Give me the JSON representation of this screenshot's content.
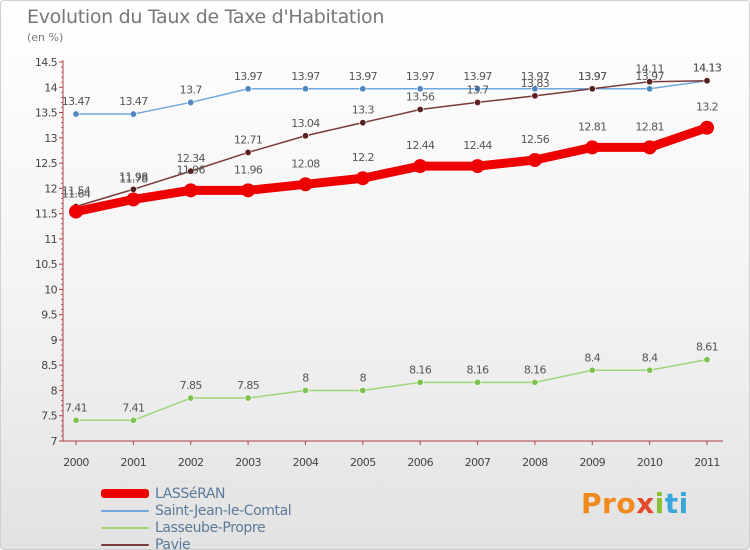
{
  "title": "Evolution du Taux de Taxe d'Habitation",
  "unit": "(en %)",
  "brand": {
    "p1": "Pro",
    "p2": "x",
    "p3": "i",
    "p4": "ti"
  },
  "chart_data": {
    "type": "line",
    "title": "Evolution du Taux de Taxe d'Habitation",
    "ylabel": "(en %)",
    "xlabel": "",
    "ylim": [
      7,
      14.5
    ],
    "x": [
      "2000",
      "2001",
      "2002",
      "2003",
      "2004",
      "2005",
      "2006",
      "2007",
      "2008",
      "2009",
      "2010",
      "2011"
    ],
    "yticks": [
      "7",
      "7.5",
      "8",
      "8.5",
      "9",
      "9.5",
      "10",
      "10.5",
      "11",
      "11.5",
      "12",
      "12.5",
      "13",
      "13.5",
      "14",
      "14.5"
    ],
    "grid": false,
    "legend_position": "bottom-left",
    "series": [
      {
        "name": "LASSéRAN",
        "color": "#ee0000",
        "values": [
          11.54,
          11.78,
          11.96,
          11.96,
          12.08,
          12.2,
          12.44,
          12.44,
          12.56,
          12.81,
          12.81,
          13.2
        ],
        "labels": [
          "11.54",
          "11.78",
          "11.96",
          "11.96",
          "12.08",
          "12.2",
          "12.44",
          "12.44",
          "12.56",
          "12.81",
          "12.81",
          "13.2"
        ]
      },
      {
        "name": "Saint-Jean-le-Comtal",
        "color": "#6fa8dc",
        "values": [
          13.47,
          13.47,
          13.7,
          13.97,
          13.97,
          13.97,
          13.97,
          13.97,
          13.97,
          13.97,
          13.97,
          14.13
        ],
        "labels": [
          "13.47",
          "13.47",
          "13.7",
          "13.97",
          "13.97",
          "13.97",
          "13.97",
          "13.97",
          "13.97",
          "13.97",
          "13.97",
          "14.13"
        ]
      },
      {
        "name": "Lasseube-Propre",
        "color": "#9fd67a",
        "values": [
          7.41,
          7.41,
          7.85,
          7.85,
          8,
          8,
          8.16,
          8.16,
          8.16,
          8.4,
          8.4,
          8.61
        ],
        "labels": [
          "7.41",
          "7.41",
          "7.85",
          "7.85",
          "8",
          "8",
          "8.16",
          "8.16",
          "8.16",
          "8.4",
          "8.4",
          "8.61"
        ]
      },
      {
        "name": "Pavie",
        "color": "#7a3b3b",
        "values": [
          11.64,
          11.98,
          12.34,
          12.71,
          13.04,
          13.3,
          13.56,
          13.7,
          13.83,
          13.97,
          14.11,
          14.13
        ],
        "labels": [
          "11.64",
          "11.98",
          "12.34",
          "12.71",
          "13.04",
          "13.3",
          "13.56",
          "13.7",
          "13.83",
          "13.97",
          "14.11",
          "14.13"
        ]
      }
    ]
  }
}
